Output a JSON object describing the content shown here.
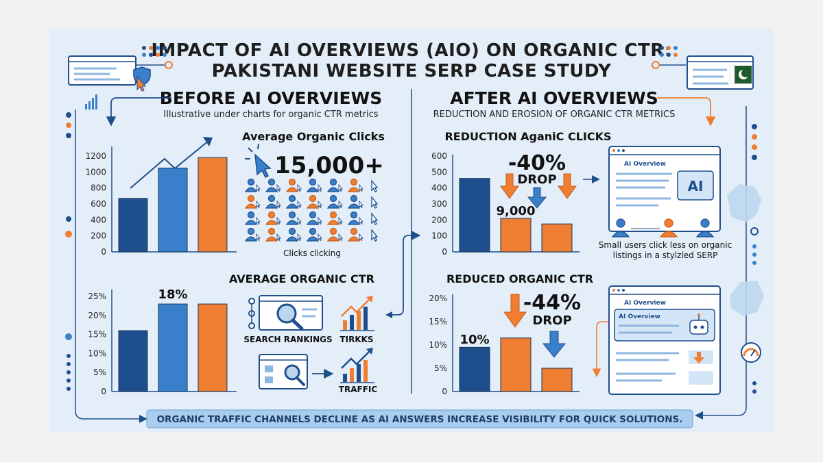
{
  "title_line1": "IMPACT OF AI OVERVIEWS (AIO) ON ORGANIC CTR:",
  "title_line2": "PAKISTANI WEBSITE SERP CASE STUDY",
  "before": {
    "heading": "BEFORE AI OVERVIEWS",
    "subheading": "Illustrative under charts for organic CTR metrics",
    "clicks_stat": "15,000+",
    "clicks_caption": "Clicks clicking",
    "icon_labels": [
      "SEARCH RANKINGS",
      "TIRKKS",
      "TRAFFIC"
    ]
  },
  "after": {
    "heading": "AFTER AI OVERVIEWS",
    "subheading": "REDUCTION AND EROSION OF ORGANIC CTR METRICS",
    "clicks_drop": "-40%",
    "ctr_drop": "-44%",
    "drop_word": "DROP",
    "serp_label": "AI Overview",
    "serp_ai": "AI",
    "serp_caption_line1": "Small users click less on organic",
    "serp_caption_line2": "listings in a stylzled SERP"
  },
  "banner": "ORGANIC TRAFFIC CHANNELS DECLINE AS AI ANSWERS INCREASE VISIBILITY FOR QUICK SOLUTIONS.",
  "colors": {
    "navy": "#1f4e8c",
    "blue": "#3a7fc9",
    "orange": "#ef7d32",
    "panel": "#e4eef8",
    "banner": "#a9cdef"
  },
  "chart_data": [
    {
      "type": "bar",
      "title": "Average Organic Clicks",
      "categories": [
        "",
        "",
        ""
      ],
      "values": [
        670,
        1050,
        1180
      ],
      "colors": [
        "#1f4e8c",
        "#3a7fc9",
        "#ef7d32"
      ],
      "yticks": [
        "0",
        "200",
        "400",
        "600",
        "800",
        "1000",
        "1200"
      ],
      "ylim": [
        0,
        1200
      ]
    },
    {
      "type": "bar",
      "title": "AVERAGE ORGANIC CTR",
      "categories": [
        "",
        "",
        ""
      ],
      "values": [
        16,
        23,
        23
      ],
      "colors": [
        "#1f4e8c",
        "#3a7fc9",
        "#ef7d32"
      ],
      "data_label": "18%",
      "yticks": [
        "0",
        "5%",
        "10%",
        "15%",
        "20%",
        "25%"
      ],
      "ylim": [
        0,
        25
      ]
    },
    {
      "type": "bar",
      "title": "REDUCTION AganiC CLICKS",
      "categories": [
        "",
        "",
        ""
      ],
      "values": [
        460,
        210,
        175
      ],
      "colors": [
        "#1f4e8c",
        "#ef7d32",
        "#ef7d32"
      ],
      "data_label": "9,000",
      "yticks": [
        "0",
        "100",
        "200",
        "300",
        "400",
        "500",
        "600"
      ],
      "ylim": [
        0,
        600
      ]
    },
    {
      "type": "bar",
      "title": "REDUCED ORGANIC CTR",
      "categories": [
        "",
        "",
        ""
      ],
      "values": [
        9.5,
        11.5,
        5
      ],
      "colors": [
        "#1f4e8c",
        "#ef7d32",
        "#ef7d32"
      ],
      "data_label": "10%",
      "yticks": [
        "0",
        "5%",
        "10%",
        "15%",
        "20%"
      ],
      "ylim": [
        0,
        20
      ]
    }
  ]
}
